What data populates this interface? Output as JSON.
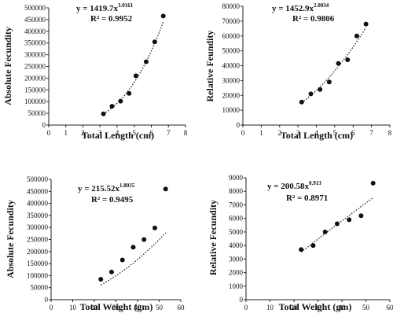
{
  "chart_data": [
    {
      "type": "scatter",
      "xlabel": "Total Length (cm)",
      "ylabel": "Absolute Fecundity",
      "xlim": [
        0,
        8
      ],
      "ylim": [
        0,
        500000
      ],
      "xticks": [
        "0",
        "1",
        "2",
        "3",
        "4",
        "5",
        "6",
        "7",
        "8"
      ],
      "yticks": [
        "0",
        "50000",
        "100000",
        "150000",
        "200000",
        "250000",
        "300000",
        "350000",
        "400000",
        "450000",
        "500000"
      ],
      "equation_base": "y = 1419.7x",
      "equation_exp": "3.0161",
      "r2": "R² = 0.9952",
      "trendline": {
        "type": "power",
        "a": 1419.7,
        "b": 3.0161
      },
      "points": [
        {
          "x": 3.2,
          "y": 48000
        },
        {
          "x": 3.7,
          "y": 80000
        },
        {
          "x": 4.2,
          "y": 102000
        },
        {
          "x": 4.7,
          "y": 135000
        },
        {
          "x": 5.1,
          "y": 210000
        },
        {
          "x": 5.7,
          "y": 270000
        },
        {
          "x": 6.2,
          "y": 355000
        },
        {
          "x": 6.7,
          "y": 465000
        }
      ]
    },
    {
      "type": "scatter",
      "xlabel": "Total Length (cm)",
      "ylabel": "Relative Feundity",
      "xlim": [
        0,
        8
      ],
      "ylim": [
        0,
        80000
      ],
      "xticks": [
        "0",
        "1",
        "2",
        "3",
        "4",
        "5",
        "6",
        "7",
        "8"
      ],
      "yticks": [
        "0",
        "10000",
        "20000",
        "30000",
        "40000",
        "50000",
        "60000",
        "70000",
        "80000"
      ],
      "equation_base": "y = 1452.9x",
      "equation_exp": "2.0034",
      "r2": "R² = 0.9806",
      "trendline": {
        "type": "power",
        "a": 1452.9,
        "b": 2.0034
      },
      "points": [
        {
          "x": 3.2,
          "y": 15500
        },
        {
          "x": 3.7,
          "y": 21000
        },
        {
          "x": 4.2,
          "y": 24000
        },
        {
          "x": 4.7,
          "y": 29000
        },
        {
          "x": 5.2,
          "y": 41500
        },
        {
          "x": 5.7,
          "y": 44000
        },
        {
          "x": 6.2,
          "y": 60000
        },
        {
          "x": 6.7,
          "y": 68000
        }
      ]
    },
    {
      "type": "scatter",
      "xlabel": "Total Weight (gm)",
      "ylabel": "Absolute Fecundity",
      "xlim": [
        0,
        60
      ],
      "ylim": [
        0,
        500000
      ],
      "xticks": [
        "0",
        "10",
        "20",
        "30",
        "40",
        "50",
        "60"
      ],
      "yticks": [
        "0",
        "50000",
        "100000",
        "150000",
        "200000",
        "250000",
        "300000",
        "350000",
        "400000",
        "450000",
        "500000"
      ],
      "equation_base": "y = 215.52x",
      "equation_exp": "1.8035",
      "r2": "R² = 0.9495",
      "trendline": {
        "type": "power",
        "a": 215.52,
        "b": 1.8035
      },
      "points": [
        {
          "x": 23,
          "y": 85000
        },
        {
          "x": 28,
          "y": 115000
        },
        {
          "x": 33,
          "y": 165000
        },
        {
          "x": 38,
          "y": 218000
        },
        {
          "x": 43,
          "y": 250000
        },
        {
          "x": 48,
          "y": 298000
        },
        {
          "x": 53,
          "y": 460000
        }
      ]
    },
    {
      "type": "scatter",
      "xlabel": "Total Weight (gm)",
      "ylabel": "Relative Fecundity",
      "xlim": [
        0,
        60
      ],
      "ylim": [
        0,
        9000
      ],
      "xticks": [
        "0",
        "10",
        "20",
        "30",
        "40",
        "50",
        "60"
      ],
      "yticks": [
        "0",
        "1000",
        "2000",
        "3000",
        "4000",
        "5000",
        "6000",
        "7000",
        "8000",
        "9000"
      ],
      "equation_base": "y = 200.58x",
      "equation_exp": "0.913",
      "r2": "R² = 0.8971",
      "trendline": {
        "type": "power",
        "a": 200.58,
        "b": 0.913
      },
      "points": [
        {
          "x": 23,
          "y": 3700
        },
        {
          "x": 28,
          "y": 4000
        },
        {
          "x": 33,
          "y": 5000
        },
        {
          "x": 38,
          "y": 5600
        },
        {
          "x": 43,
          "y": 5900
        },
        {
          "x": 48,
          "y": 6200
        },
        {
          "x": 53,
          "y": 8600
        }
      ]
    }
  ]
}
